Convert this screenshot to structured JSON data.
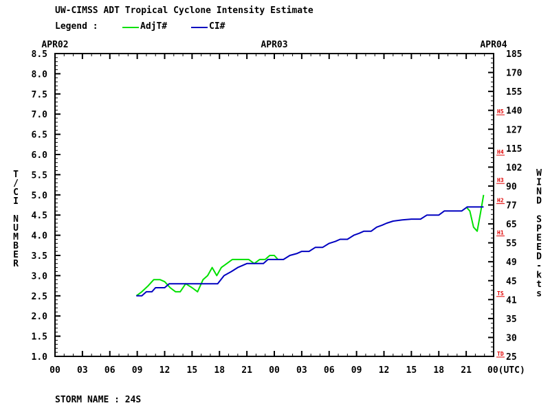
{
  "title": "UW-CIMSS ADT Tropical Cyclone Intensity Estimate",
  "legend": {
    "label": "Legend :",
    "items": [
      {
        "name": "AdjT#",
        "color": "#00e000"
      },
      {
        "name": "CI#",
        "color": "#0000c0"
      }
    ]
  },
  "storm_name": "STORM NAME : 24S",
  "colors": {
    "adjt": "#00e000",
    "ci": "#0000c0",
    "category": "#e00000",
    "axis": "#000000"
  },
  "chart_data": {
    "type": "line",
    "title": "UW-CIMSS ADT Tropical Cyclone Intensity Estimate",
    "date_labels": [
      {
        "hour": 0,
        "label": "APR02"
      },
      {
        "hour": 24,
        "label": "APR03"
      },
      {
        "hour": 48,
        "label": "APR04"
      }
    ],
    "x_tick_labels": [
      "00",
      "03",
      "06",
      "09",
      "12",
      "15",
      "18",
      "21",
      "00",
      "03",
      "06",
      "09",
      "12",
      "15",
      "18",
      "21",
      "00(UTC)"
    ],
    "xlim": [
      0,
      48
    ],
    "ylabel": "T/CI NUMBER",
    "ylim": [
      1.0,
      8.5
    ],
    "y_tick_labels": [
      "1.0",
      "1.5",
      "2.0",
      "2.5",
      "3.0",
      "3.5",
      "4.0",
      "4.5",
      "5.0",
      "5.5",
      "6.0",
      "6.5",
      "7.0",
      "7.5",
      "8.0",
      "8.5"
    ],
    "y2label": "WIND SPEED-kts",
    "y2_tick_labels": [
      "25",
      "30",
      "35",
      "41",
      "45",
      "49",
      "55",
      "65",
      "77",
      "90",
      "102",
      "115",
      "127",
      "140",
      "155",
      "170",
      "185"
    ],
    "categories": [
      {
        "label": "TD",
        "tnum": 1.0
      },
      {
        "label": "TS",
        "tnum": 2.5
      },
      {
        "label": "H1",
        "tnum": 4.0
      },
      {
        "label": "H2",
        "tnum": 4.8
      },
      {
        "label": "H3",
        "tnum": 5.3
      },
      {
        "label": "H4",
        "tnum": 6.0
      },
      {
        "label": "H5",
        "tnum": 7.0
      }
    ],
    "series": [
      {
        "name": "AdjT#",
        "color": "#00e000",
        "points": [
          [
            8.9,
            2.5
          ],
          [
            9.5,
            2.6
          ],
          [
            10.2,
            2.75
          ],
          [
            10.8,
            2.9
          ],
          [
            11.5,
            2.9
          ],
          [
            12.0,
            2.85
          ],
          [
            12.6,
            2.7
          ],
          [
            13.2,
            2.6
          ],
          [
            13.7,
            2.6
          ],
          [
            14.3,
            2.8
          ],
          [
            15.0,
            2.7
          ],
          [
            15.6,
            2.6
          ],
          [
            16.2,
            2.9
          ],
          [
            16.7,
            3.0
          ],
          [
            17.2,
            3.2
          ],
          [
            17.7,
            3.0
          ],
          [
            18.2,
            3.2
          ],
          [
            18.8,
            3.3
          ],
          [
            19.4,
            3.4
          ],
          [
            20.0,
            3.4
          ],
          [
            20.6,
            3.4
          ],
          [
            21.2,
            3.4
          ],
          [
            21.8,
            3.3
          ],
          [
            22.4,
            3.4
          ],
          [
            23.0,
            3.4
          ],
          [
            23.5,
            3.5
          ],
          [
            24.0,
            3.5
          ],
          [
            24.4,
            3.4
          ],
          [
            45.0,
            4.7
          ],
          [
            45.4,
            4.6
          ],
          [
            45.8,
            4.2
          ],
          [
            46.2,
            4.1
          ],
          [
            46.6,
            4.6
          ],
          [
            46.9,
            5.0
          ]
        ]
      },
      {
        "name": "CI#",
        "color": "#0000c0",
        "points": [
          [
            8.9,
            2.5
          ],
          [
            9.5,
            2.5
          ],
          [
            10.0,
            2.6
          ],
          [
            10.6,
            2.6
          ],
          [
            11.0,
            2.7
          ],
          [
            12.0,
            2.7
          ],
          [
            12.5,
            2.8
          ],
          [
            17.8,
            2.8
          ],
          [
            18.5,
            3.0
          ],
          [
            19.3,
            3.1
          ],
          [
            20.0,
            3.2
          ],
          [
            20.5,
            3.25
          ],
          [
            21.0,
            3.3
          ],
          [
            22.8,
            3.3
          ],
          [
            23.3,
            3.4
          ],
          [
            25.0,
            3.4
          ],
          [
            25.7,
            3.5
          ],
          [
            26.5,
            3.55
          ],
          [
            27.0,
            3.6
          ],
          [
            27.8,
            3.6
          ],
          [
            28.5,
            3.7
          ],
          [
            29.3,
            3.7
          ],
          [
            30.0,
            3.8
          ],
          [
            30.7,
            3.85
          ],
          [
            31.2,
            3.9
          ],
          [
            32.0,
            3.9
          ],
          [
            32.7,
            4.0
          ],
          [
            33.3,
            4.05
          ],
          [
            33.8,
            4.1
          ],
          [
            34.6,
            4.1
          ],
          [
            35.2,
            4.2
          ],
          [
            35.8,
            4.25
          ],
          [
            36.3,
            4.3
          ],
          [
            37.0,
            4.35
          ],
          [
            38.0,
            4.38
          ],
          [
            39.0,
            4.4
          ],
          [
            40.0,
            4.4
          ],
          [
            40.7,
            4.5
          ],
          [
            42.0,
            4.5
          ],
          [
            42.6,
            4.6
          ],
          [
            44.5,
            4.6
          ],
          [
            45.1,
            4.7
          ],
          [
            46.9,
            4.7
          ]
        ]
      }
    ]
  }
}
